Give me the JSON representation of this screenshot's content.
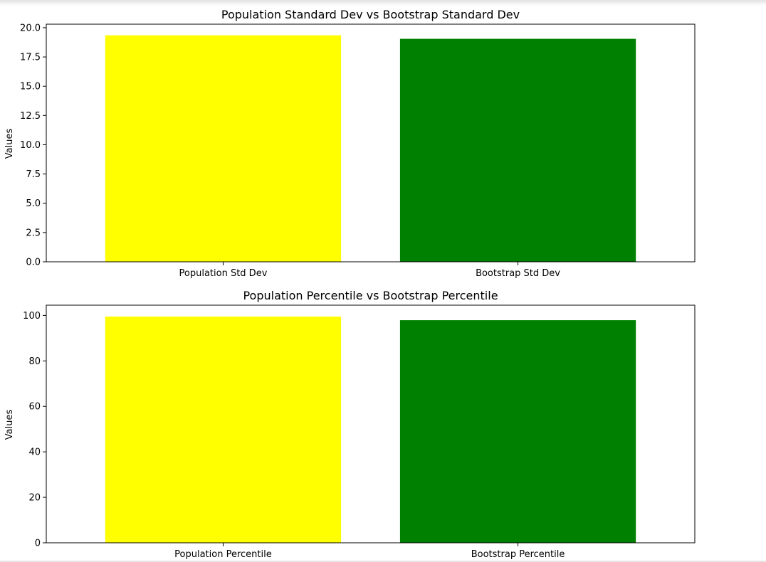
{
  "chart_data": [
    {
      "type": "bar",
      "title": "Population Standard Dev vs Bootstrap Standard Dev",
      "xlabel": "",
      "ylabel": "Values",
      "categories": [
        "Population Std Dev",
        "Bootstrap Std Dev"
      ],
      "values": [
        19.35,
        19.05
      ],
      "colors": [
        "#ffff00",
        "#008000"
      ],
      "ylim": [
        0,
        20.3
      ],
      "yticks": [
        0,
        2.5,
        5,
        7.5,
        10,
        12.5,
        15,
        17.5,
        20
      ],
      "ytick_labels": [
        "0.0",
        "2.5",
        "5.0",
        "7.5",
        "10.0",
        "12.5",
        "15.0",
        "17.5",
        "20.0"
      ],
      "grid": false,
      "legend": "none"
    },
    {
      "type": "bar",
      "title": "Population Percentile vs Bootstrap Percentile",
      "xlabel": "",
      "ylabel": "Values",
      "categories": [
        "Population Percentile",
        "Bootstrap Percentile"
      ],
      "values": [
        99.5,
        97.9
      ],
      "colors": [
        "#ffff00",
        "#008000"
      ],
      "ylim": [
        0,
        104.5
      ],
      "yticks": [
        0,
        20,
        40,
        60,
        80,
        100
      ],
      "ytick_labels": [
        "0",
        "20",
        "40",
        "60",
        "80",
        "100"
      ],
      "grid": false,
      "legend": "none"
    }
  ]
}
